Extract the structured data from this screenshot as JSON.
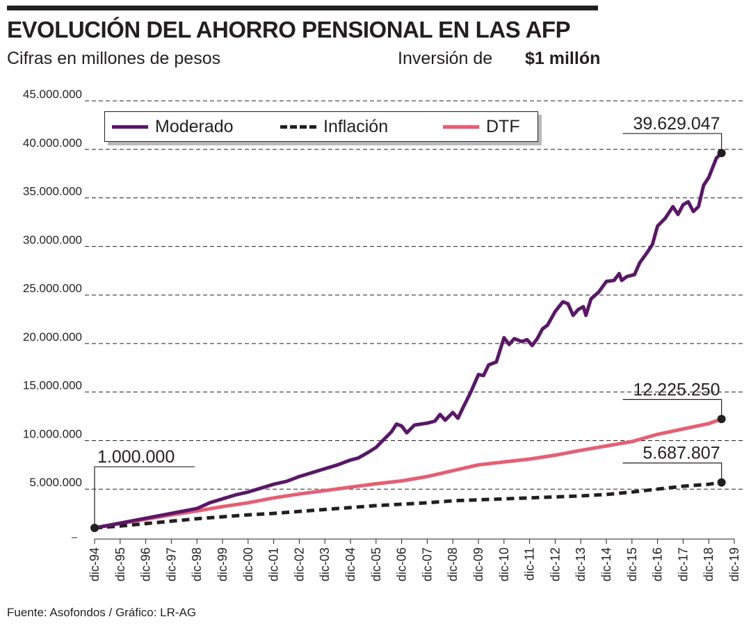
{
  "header": {
    "title": "EVOLUCIÓN DEL AHORRO PENSIONAL EN LAS AFP",
    "subtitle": "Cifras en millones de pesos",
    "investment_label": "Inversión de",
    "investment_value": "$1 millón"
  },
  "footer": {
    "source": "Fuente: Asofondos / Gráfico: LR-AG"
  },
  "colors": {
    "moderado": "#5b1669",
    "inflacion": "#231f20",
    "dtf": "#ee5a6f",
    "text": "#231f20",
    "grid": "#231f20"
  },
  "chart_data": {
    "type": "line",
    "title": "EVOLUCIÓN DEL AHORRO PENSIONAL EN LAS AFP",
    "subtitle": "Cifras en millones de pesos",
    "xlabel": "",
    "ylabel": "",
    "ylim": [
      0,
      45000000
    ],
    "xlim": [
      0,
      25
    ],
    "grid": "horizontal dashed",
    "legend_position": "top-left",
    "y_ticks": [
      0,
      5000000,
      10000000,
      15000000,
      20000000,
      25000000,
      30000000,
      35000000,
      40000000,
      45000000
    ],
    "y_tick_labels": [
      "-",
      "5.000.000",
      "10.000.000",
      "15.000.000",
      "20.000.000",
      "25.000.000",
      "30.000.000",
      "35.000.000",
      "40.000.000",
      "45.000.000"
    ],
    "categories": [
      "dic-94",
      "dic-95",
      "dic-96",
      "dic-97",
      "dic-98",
      "dic-99",
      "dic-00",
      "dic-01",
      "dic-02",
      "dic-03",
      "dic-04",
      "dic-05",
      "dic-06",
      "dic-07",
      "dic-08",
      "dic-09",
      "dic-10",
      "dic-11",
      "dic-12",
      "dic-13",
      "dic-14",
      "dic-15",
      "dic-16",
      "dic-17",
      "dic-18",
      "dic-19"
    ],
    "series": [
      {
        "name": "Moderado",
        "style": "solid",
        "color": "#5b1669",
        "points": [
          [
            0,
            1000000
          ],
          [
            1,
            1500000
          ],
          [
            2,
            2000000
          ],
          [
            3,
            2500000
          ],
          [
            4,
            3000000
          ],
          [
            4.5,
            3600000
          ],
          [
            5,
            4000000
          ],
          [
            5.5,
            4400000
          ],
          [
            6,
            4700000
          ],
          [
            6.5,
            5100000
          ],
          [
            7,
            5500000
          ],
          [
            7.5,
            5800000
          ],
          [
            8,
            6300000
          ],
          [
            8.5,
            6700000
          ],
          [
            9,
            7100000
          ],
          [
            9.5,
            7500000
          ],
          [
            10,
            8000000
          ],
          [
            10.3,
            8200000
          ],
          [
            10.7,
            8800000
          ],
          [
            11,
            9300000
          ],
          [
            11.3,
            10100000
          ],
          [
            11.6,
            10900000
          ],
          [
            11.8,
            11700000
          ],
          [
            12,
            11500000
          ],
          [
            12.2,
            10800000
          ],
          [
            12.5,
            11600000
          ],
          [
            13,
            11800000
          ],
          [
            13.3,
            12000000
          ],
          [
            13.5,
            12700000
          ],
          [
            13.7,
            12100000
          ],
          [
            14,
            12900000
          ],
          [
            14.2,
            12300000
          ],
          [
            14.4,
            13400000
          ],
          [
            14.7,
            15000000
          ],
          [
            15,
            16800000
          ],
          [
            15.2,
            16700000
          ],
          [
            15.4,
            17800000
          ],
          [
            15.7,
            18100000
          ],
          [
            16,
            20600000
          ],
          [
            16.2,
            19900000
          ],
          [
            16.4,
            20500000
          ],
          [
            16.7,
            20200000
          ],
          [
            16.9,
            20400000
          ],
          [
            17.1,
            19800000
          ],
          [
            17.3,
            20500000
          ],
          [
            17.5,
            21500000
          ],
          [
            17.7,
            21900000
          ],
          [
            18,
            23300000
          ],
          [
            18.3,
            24300000
          ],
          [
            18.5,
            24100000
          ],
          [
            18.7,
            22900000
          ],
          [
            18.9,
            23500000
          ],
          [
            19.1,
            23800000
          ],
          [
            19.2,
            22900000
          ],
          [
            19.4,
            24600000
          ],
          [
            19.7,
            25300000
          ],
          [
            20,
            26400000
          ],
          [
            20.3,
            26500000
          ],
          [
            20.5,
            27200000
          ],
          [
            20.6,
            26500000
          ],
          [
            20.8,
            26900000
          ],
          [
            21.1,
            27100000
          ],
          [
            21.3,
            28300000
          ],
          [
            21.6,
            29400000
          ],
          [
            21.8,
            30200000
          ],
          [
            22,
            32100000
          ],
          [
            22.3,
            32900000
          ],
          [
            22.6,
            34100000
          ],
          [
            22.8,
            33300000
          ],
          [
            23,
            34300000
          ],
          [
            23.2,
            34600000
          ],
          [
            23.4,
            33600000
          ],
          [
            23.6,
            34100000
          ],
          [
            23.8,
            36300000
          ],
          [
            24,
            37100000
          ],
          [
            24.3,
            39100000
          ],
          [
            24.5,
            39629047
          ]
        ]
      },
      {
        "name": "Inflación",
        "style": "dashed",
        "color": "#231f20",
        "points": [
          [
            0,
            1000000
          ],
          [
            1,
            1200000
          ],
          [
            2,
            1450000
          ],
          [
            3,
            1700000
          ],
          [
            4,
            1950000
          ],
          [
            5,
            2150000
          ],
          [
            6,
            2350000
          ],
          [
            7,
            2500000
          ],
          [
            8,
            2700000
          ],
          [
            9,
            2900000
          ],
          [
            10,
            3100000
          ],
          [
            11,
            3300000
          ],
          [
            12,
            3450000
          ],
          [
            13,
            3600000
          ],
          [
            14,
            3800000
          ],
          [
            15,
            3900000
          ],
          [
            16,
            4000000
          ],
          [
            17,
            4100000
          ],
          [
            18,
            4200000
          ],
          [
            19,
            4300000
          ],
          [
            20,
            4450000
          ],
          [
            21,
            4700000
          ],
          [
            22,
            5000000
          ],
          [
            23,
            5300000
          ],
          [
            24,
            5500000
          ],
          [
            24.5,
            5687807
          ]
        ]
      },
      {
        "name": "DTF",
        "style": "solid",
        "color": "#ee5a6f",
        "points": [
          [
            0,
            1000000
          ],
          [
            1,
            1450000
          ],
          [
            2,
            1900000
          ],
          [
            3,
            2350000
          ],
          [
            4,
            2750000
          ],
          [
            5,
            3200000
          ],
          [
            6,
            3600000
          ],
          [
            7,
            4100000
          ],
          [
            8,
            4500000
          ],
          [
            9,
            4850000
          ],
          [
            10,
            5200000
          ],
          [
            11,
            5550000
          ],
          [
            12,
            5850000
          ],
          [
            13,
            6300000
          ],
          [
            14,
            6900000
          ],
          [
            15,
            7500000
          ],
          [
            16,
            7800000
          ],
          [
            17,
            8100000
          ],
          [
            18,
            8500000
          ],
          [
            19,
            9000000
          ],
          [
            20,
            9450000
          ],
          [
            21,
            9900000
          ],
          [
            22,
            10650000
          ],
          [
            23,
            11200000
          ],
          [
            24,
            11750000
          ],
          [
            24.5,
            12225250
          ]
        ]
      }
    ],
    "annotations": [
      {
        "label": "1.000.000",
        "x": 0,
        "y": 1000000,
        "side": "left"
      },
      {
        "label": "39.629.047",
        "x": 24.5,
        "y": 39629047,
        "side": "right"
      },
      {
        "label": "12.225.250",
        "x": 24.5,
        "y": 12225250,
        "side": "right"
      },
      {
        "label": "5.687.807",
        "x": 24.5,
        "y": 5687807,
        "side": "right"
      }
    ]
  }
}
